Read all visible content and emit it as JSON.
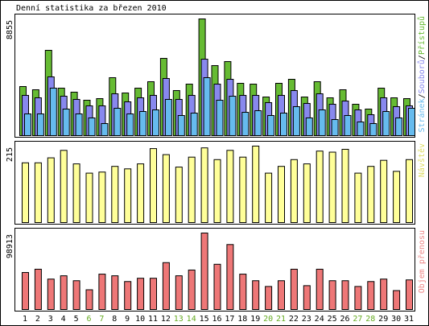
{
  "chart_data": [
    {
      "type": "bar",
      "title": "Denní statistika za březen 2010",
      "ylim": [
        0,
        8855
      ],
      "yticks": [
        8855
      ],
      "separator": "/",
      "series": [
        {
          "name": "Stránek",
          "color": "#66bbee",
          "values": [
            1649,
            1649,
            3603,
            2015,
            1649,
            1344,
            916,
            2076,
            1649,
            1832,
            1954,
            2748,
            1527,
            1710,
            4397,
            2687,
            2992,
            1771,
            1893,
            1527,
            1710,
            2199,
            1344,
            1954,
            1221,
            1527,
            1038,
            916,
            1832,
            1344,
            2076
          ]
        },
        {
          "name": "Souborů",
          "color": "#8888ee",
          "values": [
            3054,
            2870,
            4458,
            2992,
            2748,
            2260,
            2260,
            3176,
            2565,
            2870,
            3054,
            4336,
            2748,
            3054,
            5802,
            3908,
            4275,
            3054,
            3054,
            2504,
            3054,
            3420,
            2443,
            3176,
            2382,
            2626,
            1954,
            1588,
            2870,
            2199,
            2260
          ]
        },
        {
          "name": "Přístupů",
          "color": "#66bb33",
          "values": [
            3725,
            3481,
            6473,
            3603,
            3298,
            2687,
            2809,
            4397,
            3237,
            3603,
            4092,
            5863,
            3420,
            3908,
            8855,
            5313,
            5618,
            3970,
            3908,
            2931,
            3970,
            4275,
            2931,
            4092,
            2870,
            3481,
            2382,
            2015,
            3603,
            2870,
            2809
          ]
        }
      ]
    },
    {
      "type": "bar",
      "ylim": [
        0,
        215
      ],
      "yticks": [
        215
      ],
      "series": [
        {
          "name": "Návštěv",
          "color": "#ffff99",
          "label_color": "#dddd66",
          "values": [
            168,
            168,
            182,
            203,
            165,
            139,
            142,
            158,
            151,
            165,
            208,
            191,
            156,
            184,
            210,
            177,
            203,
            184,
            215,
            139,
            158,
            177,
            165,
            201,
            198,
            206,
            139,
            158,
            175,
            144,
            177
          ]
        }
      ]
    },
    {
      "type": "bar",
      "ylim": [
        0,
        98913
      ],
      "yticks": [
        98913
      ],
      "categories": [
        "1",
        "2",
        "3",
        "4",
        "5",
        "6",
        "7",
        "8",
        "9",
        "10",
        "11",
        "12",
        "13",
        "14",
        "15",
        "16",
        "17",
        "18",
        "19",
        "20",
        "21",
        "22",
        "23",
        "24",
        "25",
        "26",
        "27",
        "28",
        "29",
        "30",
        "31"
      ],
      "category_colors": [
        "#000000",
        "#000000",
        "#000000",
        "#000000",
        "#000000",
        "#66aa22",
        "#66aa22",
        "#000000",
        "#000000",
        "#000000",
        "#000000",
        "#000000",
        "#66aa22",
        "#66aa22",
        "#000000",
        "#000000",
        "#000000",
        "#000000",
        "#000000",
        "#66aa22",
        "#66aa22",
        "#000000",
        "#000000",
        "#000000",
        "#000000",
        "#000000",
        "#66aa22",
        "#66aa22",
        "#000000",
        "#000000",
        "#000000"
      ],
      "series": [
        {
          "name": "Objem přenosu",
          "color": "#ee7777",
          "label_color": "#ee8888",
          "values": [
            47862,
            52117,
            39353,
            43608,
            37226,
            25526,
            45735,
            43608,
            36162,
            40417,
            40417,
            60625,
            43608,
            51053,
            98913,
            58498,
            84024,
            45735,
            37226,
            29781,
            37226,
            52117,
            30844,
            52117,
            37226,
            37226,
            29781,
            36162,
            39353,
            24463,
            38290
          ]
        }
      ]
    }
  ]
}
